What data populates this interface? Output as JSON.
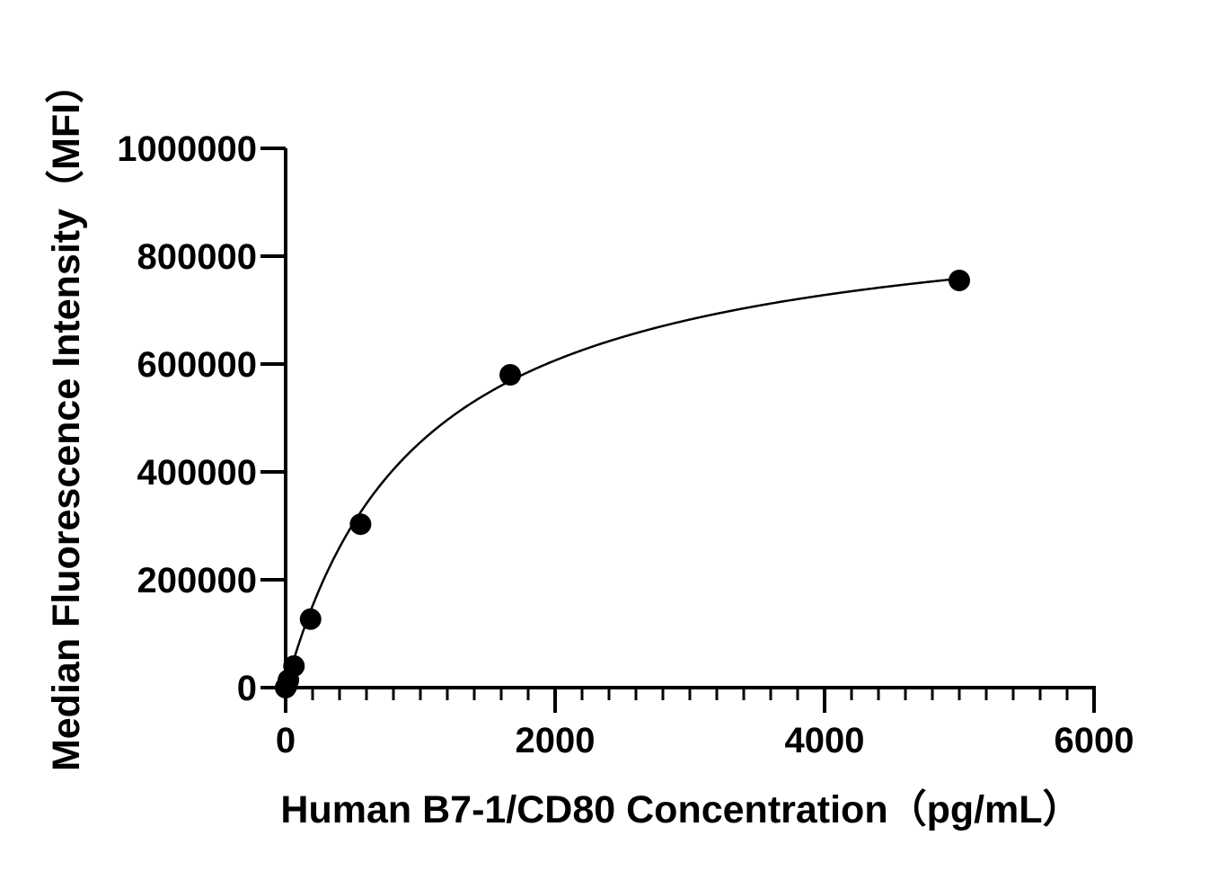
{
  "chart_data": {
    "type": "scatter",
    "title": "",
    "xlabel": "Human B7-1/CD80 Concentration（pg/mL）",
    "ylabel": "Median Fluorescence Intensity（MFI）",
    "xlim": [
      0,
      6000
    ],
    "ylim": [
      0,
      1000000
    ],
    "x_ticks": [
      "0",
      "2000",
      "4000",
      "6000"
    ],
    "y_ticks": [
      "0",
      "200000",
      "400000",
      "600000",
      "800000",
      "1000000"
    ],
    "grid": false,
    "series": [
      {
        "points": [
          {
            "x": 0,
            "y": 0
          },
          {
            "x": 6.9,
            "y": 3000
          },
          {
            "x": 20.6,
            "y": 14000
          },
          {
            "x": 61.7,
            "y": 40000
          },
          {
            "x": 185,
            "y": 127000
          },
          {
            "x": 556,
            "y": 303000
          },
          {
            "x": 1667,
            "y": 580000
          },
          {
            "x": 5000,
            "y": 755000
          }
        ]
      }
    ],
    "fit_curve": {
      "model": "four-parameter logistic",
      "bottom": 0,
      "top": 910000,
      "ec50": 1000,
      "hill": 1.0
    }
  }
}
